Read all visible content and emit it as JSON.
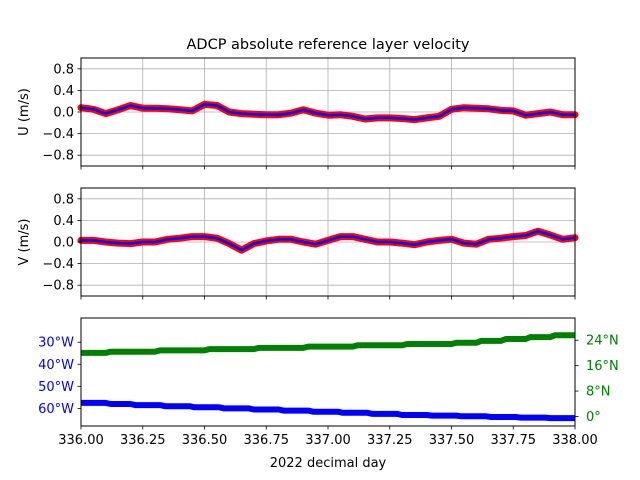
{
  "figure": {
    "title": "ADCP absolute reference layer velocity",
    "xlabel": "2022 decimal day"
  },
  "colors": {
    "spine": "#000000",
    "grid": "#b0b0b0",
    "u_outer": "#ff0000",
    "u_inner": "#0000ff",
    "v_outer": "#ff0000",
    "v_inner": "#0000ff",
    "lon": "#0000ff",
    "lat": "#008000"
  },
  "chart_data": [
    {
      "type": "line",
      "ylabel": "U (m/s)",
      "xlim": [
        336.0,
        338.0
      ],
      "ylim": [
        -1.0,
        1.0
      ],
      "xticks": [
        336.0,
        336.25,
        336.5,
        336.75,
        337.0,
        337.25,
        337.5,
        337.75,
        338.0
      ],
      "yticks": [
        -0.8,
        -0.4,
        0.0,
        0.4,
        0.8
      ],
      "ytick_labels": [
        "−0.8",
        "−0.4",
        "0.0",
        "0.4",
        "0.8"
      ],
      "grid": true,
      "x": [
        336.0,
        336.05,
        336.1,
        336.15,
        336.2,
        336.25,
        336.3,
        336.35,
        336.4,
        336.45,
        336.5,
        336.55,
        336.6,
        336.65,
        336.7,
        336.75,
        336.8,
        336.85,
        336.9,
        336.95,
        337.0,
        337.05,
        337.1,
        337.15,
        337.2,
        337.25,
        337.3,
        337.35,
        337.4,
        337.45,
        337.5,
        337.55,
        337.6,
        337.65,
        337.7,
        337.75,
        337.8,
        337.85,
        337.9,
        337.95,
        338.0
      ],
      "series": [
        {
          "values": [
            0.08,
            0.05,
            -0.03,
            0.04,
            0.12,
            0.07,
            0.07,
            0.06,
            0.04,
            0.02,
            0.14,
            0.12,
            0.0,
            -0.03,
            -0.04,
            -0.05,
            -0.05,
            -0.02,
            0.04,
            -0.02,
            -0.06,
            -0.05,
            -0.08,
            -0.13,
            -0.11,
            -0.11,
            -0.12,
            -0.14,
            -0.11,
            -0.08,
            0.05,
            0.08,
            0.07,
            0.06,
            0.03,
            0.02,
            -0.06,
            -0.03,
            0.0,
            -0.05,
            -0.05
          ]
        }
      ]
    },
    {
      "type": "line",
      "ylabel": "V (m/s)",
      "xlim": [
        336.0,
        338.0
      ],
      "ylim": [
        -1.0,
        1.0
      ],
      "xticks": [
        336.0,
        336.25,
        336.5,
        336.75,
        337.0,
        337.25,
        337.5,
        337.75,
        338.0
      ],
      "yticks": [
        -0.8,
        -0.4,
        0.0,
        0.4,
        0.8
      ],
      "ytick_labels": [
        "−0.8",
        "−0.4",
        "0.0",
        "0.4",
        "0.8"
      ],
      "grid": true,
      "x": [
        336.0,
        336.05,
        336.1,
        336.15,
        336.2,
        336.25,
        336.3,
        336.35,
        336.4,
        336.45,
        336.5,
        336.55,
        336.6,
        336.65,
        336.7,
        336.75,
        336.8,
        336.85,
        336.9,
        336.95,
        337.0,
        337.05,
        337.1,
        337.15,
        337.2,
        337.25,
        337.3,
        337.35,
        337.4,
        337.45,
        337.5,
        337.55,
        337.6,
        337.65,
        337.7,
        337.75,
        337.8,
        337.85,
        337.9,
        337.95,
        338.0
      ],
      "series": [
        {
          "values": [
            0.03,
            0.03,
            0.0,
            -0.02,
            -0.03,
            0.0,
            0.0,
            0.05,
            0.07,
            0.1,
            0.1,
            0.07,
            -0.03,
            -0.15,
            -0.03,
            0.02,
            0.05,
            0.05,
            0.0,
            -0.04,
            0.03,
            0.1,
            0.1,
            0.05,
            0.0,
            0.0,
            -0.02,
            -0.05,
            0.0,
            0.03,
            0.05,
            -0.02,
            -0.04,
            0.05,
            0.07,
            0.1,
            0.12,
            0.2,
            0.13,
            0.05,
            0.08
          ]
        }
      ]
    },
    {
      "type": "line",
      "x_ticks_shown": true,
      "xlim": [
        336.0,
        338.0
      ],
      "xticks": [
        336.0,
        336.25,
        336.5,
        336.75,
        337.0,
        337.25,
        337.5,
        337.75,
        338.0
      ],
      "xtick_labels": [
        "336.00",
        "336.25",
        "336.50",
        "336.75",
        "337.00",
        "337.25",
        "337.50",
        "337.75",
        "338.00"
      ],
      "grid": false,
      "left_axis": {
        "quantity": "longitude",
        "ylim": [
          -68.0,
          -19.0
        ],
        "yticks": [
          -60,
          -50,
          -40,
          -30
        ],
        "ytick_labels": [
          "60°W",
          "50°W",
          "40°W",
          "30°W"
        ]
      },
      "right_axis": {
        "quantity": "latitude",
        "ylim": [
          -3.0,
          31.0
        ],
        "yticks": [
          0,
          8,
          16,
          24
        ],
        "ytick_labels": [
          "0°",
          "8°N",
          "16°N",
          "24°N"
        ]
      },
      "series": [
        {
          "axis": "left",
          "x": [
            336.0,
            336.1,
            336.12,
            336.2,
            336.22,
            336.32,
            336.34,
            336.44,
            336.46,
            336.56,
            336.58,
            336.68,
            336.7,
            336.8,
            336.82,
            336.92,
            336.94,
            337.04,
            337.06,
            337.16,
            337.18,
            337.28,
            337.3,
            337.4,
            337.42,
            337.52,
            337.54,
            337.64,
            337.66,
            337.76,
            337.78,
            337.88,
            337.9,
            338.0
          ],
          "values": [
            -57.5,
            -57.5,
            -58.0,
            -58.0,
            -58.5,
            -58.5,
            -59.0,
            -59.0,
            -59.5,
            -59.5,
            -60.0,
            -60.0,
            -60.5,
            -60.5,
            -61.0,
            -61.0,
            -61.5,
            -61.5,
            -62.0,
            -62.0,
            -62.5,
            -62.5,
            -63.0,
            -63.0,
            -63.3,
            -63.3,
            -63.6,
            -63.6,
            -63.9,
            -63.9,
            -64.2,
            -64.2,
            -64.4,
            -64.4
          ]
        },
        {
          "axis": "right",
          "x": [
            336.0,
            336.1,
            336.12,
            336.3,
            336.32,
            336.5,
            336.52,
            336.7,
            336.72,
            336.9,
            336.92,
            337.1,
            337.12,
            337.3,
            337.32,
            337.5,
            337.52,
            337.6,
            337.62,
            337.7,
            337.72,
            337.8,
            337.82,
            337.9,
            337.92,
            338.0
          ],
          "values": [
            20.0,
            20.0,
            20.4,
            20.4,
            20.8,
            20.8,
            21.2,
            21.2,
            21.6,
            21.6,
            22.0,
            22.0,
            22.4,
            22.4,
            22.8,
            22.8,
            23.2,
            23.2,
            23.8,
            23.8,
            24.4,
            24.4,
            25.0,
            25.0,
            25.6,
            25.6
          ]
        }
      ]
    }
  ]
}
